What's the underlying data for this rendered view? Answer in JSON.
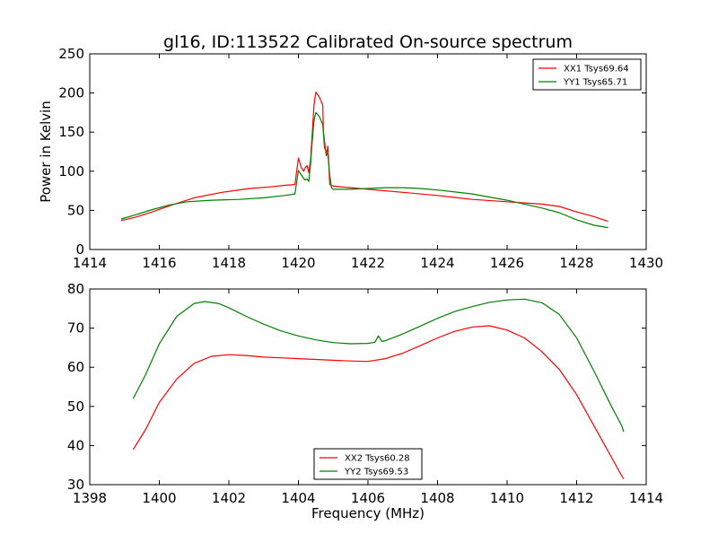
{
  "figure": {
    "title": "gl16, ID:113522 Calibrated On-source spectrum",
    "top_ylabel": "Power in Kelvin",
    "bottom_xlabel": "Frequency (MHz)"
  },
  "chart_data": [
    {
      "type": "line",
      "title": "gl16, ID:113522 Calibrated On-source spectrum",
      "xlabel": "",
      "ylabel": "Power in Kelvin",
      "xlim": [
        1414,
        1430
      ],
      "ylim": [
        0,
        250
      ],
      "xticks": [
        1414,
        1416,
        1418,
        1420,
        1422,
        1424,
        1426,
        1428,
        1430
      ],
      "yticks": [
        0,
        50,
        100,
        150,
        200,
        250
      ],
      "legend_position": "top-right",
      "grid": false,
      "series": [
        {
          "name": "XX1 Tsys69.64",
          "color": "#ff0000",
          "points": [
            [
              1414.9,
              37
            ],
            [
              1415.3,
              41
            ],
            [
              1415.8,
              48
            ],
            [
              1416.3,
              56
            ],
            [
              1417.0,
              66
            ],
            [
              1417.8,
              73
            ],
            [
              1418.6,
              78
            ],
            [
              1419.2,
              80
            ],
            [
              1419.6,
              82
            ],
            [
              1419.9,
              83
            ],
            [
              1420.0,
              117
            ],
            [
              1420.08,
              105
            ],
            [
              1420.15,
              100
            ],
            [
              1420.2,
              105
            ],
            [
              1420.25,
              107
            ],
            [
              1420.3,
              98
            ],
            [
              1420.35,
              115
            ],
            [
              1420.4,
              150
            ],
            [
              1420.45,
              185
            ],
            [
              1420.5,
              201
            ],
            [
              1420.6,
              195
            ],
            [
              1420.7,
              185
            ],
            [
              1420.72,
              150
            ],
            [
              1420.8,
              120
            ],
            [
              1420.85,
              132
            ],
            [
              1420.9,
              83
            ],
            [
              1421.0,
              81
            ],
            [
              1422.0,
              77
            ],
            [
              1423.0,
              73
            ],
            [
              1424.0,
              69
            ],
            [
              1425.0,
              64
            ],
            [
              1426.0,
              61
            ],
            [
              1427.0,
              58
            ],
            [
              1427.5,
              55
            ],
            [
              1428.0,
              48
            ],
            [
              1428.5,
              42
            ],
            [
              1428.9,
              36
            ]
          ]
        },
        {
          "name": "YY1 Tsys65.71",
          "color": "#008000",
          "points": [
            [
              1414.9,
              39
            ],
            [
              1415.3,
              44
            ],
            [
              1415.8,
              51
            ],
            [
              1416.3,
              57
            ],
            [
              1416.8,
              61
            ],
            [
              1417.5,
              63
            ],
            [
              1418.3,
              64
            ],
            [
              1419.0,
              66
            ],
            [
              1419.6,
              69
            ],
            [
              1419.9,
              71
            ],
            [
              1420.0,
              101
            ],
            [
              1420.1,
              94
            ],
            [
              1420.18,
              89
            ],
            [
              1420.25,
              90
            ],
            [
              1420.3,
              87
            ],
            [
              1420.35,
              110
            ],
            [
              1420.4,
              140
            ],
            [
              1420.45,
              165
            ],
            [
              1420.5,
              175
            ],
            [
              1420.6,
              170
            ],
            [
              1420.7,
              160
            ],
            [
              1420.75,
              130
            ],
            [
              1420.85,
              120
            ],
            [
              1420.9,
              95
            ],
            [
              1420.95,
              79
            ],
            [
              1421.0,
              77
            ],
            [
              1421.5,
              77
            ],
            [
              1422.0,
              78
            ],
            [
              1422.5,
              79
            ],
            [
              1423.0,
              79
            ],
            [
              1423.5,
              78
            ],
            [
              1424.0,
              76
            ],
            [
              1425.0,
              71
            ],
            [
              1426.0,
              63
            ],
            [
              1427.0,
              53
            ],
            [
              1427.5,
              47
            ],
            [
              1428.0,
              38
            ],
            [
              1428.5,
              31
            ],
            [
              1428.9,
              28
            ]
          ]
        }
      ]
    },
    {
      "type": "line",
      "title": "",
      "xlabel": "Frequency (MHz)",
      "ylabel": "",
      "xlim": [
        1398,
        1414
      ],
      "ylim": [
        30,
        80
      ],
      "xticks": [
        1398,
        1400,
        1402,
        1404,
        1406,
        1408,
        1410,
        1412,
        1414
      ],
      "yticks": [
        30,
        40,
        50,
        60,
        70,
        80
      ],
      "legend_position": "bottom-center",
      "grid": false,
      "series": [
        {
          "name": "XX2 Tsys60.28",
          "color": "#ff0000",
          "points": [
            [
              1399.25,
              39
            ],
            [
              1399.6,
              44
            ],
            [
              1400.0,
              51
            ],
            [
              1400.5,
              57
            ],
            [
              1401.0,
              61
            ],
            [
              1401.5,
              62.8
            ],
            [
              1402.0,
              63.2
            ],
            [
              1402.5,
              63
            ],
            [
              1403.0,
              62.6
            ],
            [
              1403.5,
              62.4
            ],
            [
              1404.0,
              62.2
            ],
            [
              1404.5,
              62
            ],
            [
              1405.0,
              61.8
            ],
            [
              1405.5,
              61.6
            ],
            [
              1406.0,
              61.5
            ],
            [
              1406.5,
              62.2
            ],
            [
              1407.0,
              63.6
            ],
            [
              1407.5,
              65.5
            ],
            [
              1408.0,
              67.5
            ],
            [
              1408.5,
              69.2
            ],
            [
              1409.0,
              70.3
            ],
            [
              1409.5,
              70.6
            ],
            [
              1410.0,
              69.5
            ],
            [
              1410.5,
              67.5
            ],
            [
              1411.0,
              64
            ],
            [
              1411.5,
              59.5
            ],
            [
              1412.0,
              53
            ],
            [
              1412.5,
              45
            ],
            [
              1413.0,
              37
            ],
            [
              1413.25,
              33
            ],
            [
              1413.35,
              31.5
            ]
          ]
        },
        {
          "name": "YY2 Tsys69.53",
          "color": "#008000",
          "points": [
            [
              1399.25,
              52
            ],
            [
              1399.6,
              58
            ],
            [
              1400.0,
              66
            ],
            [
              1400.5,
              73
            ],
            [
              1401.0,
              76.3
            ],
            [
              1401.3,
              76.8
            ],
            [
              1401.7,
              76.3
            ],
            [
              1402.0,
              75.2
            ],
            [
              1402.5,
              73
            ],
            [
              1403.0,
              71
            ],
            [
              1403.5,
              69.3
            ],
            [
              1404.0,
              68
            ],
            [
              1404.5,
              67
            ],
            [
              1405.0,
              66.3
            ],
            [
              1405.5,
              66
            ],
            [
              1406.0,
              66.1
            ],
            [
              1406.2,
              66.4
            ],
            [
              1406.3,
              68
            ],
            [
              1406.4,
              66.6
            ],
            [
              1406.5,
              66.8
            ],
            [
              1407.0,
              68.5
            ],
            [
              1407.5,
              70.5
            ],
            [
              1408.0,
              72.5
            ],
            [
              1408.5,
              74.3
            ],
            [
              1409.0,
              75.5
            ],
            [
              1409.5,
              76.6
            ],
            [
              1410.0,
              77.2
            ],
            [
              1410.5,
              77.4
            ],
            [
              1411.0,
              76.5
            ],
            [
              1411.5,
              73.5
            ],
            [
              1412.0,
              67.5
            ],
            [
              1412.5,
              59
            ],
            [
              1413.0,
              50
            ],
            [
              1413.3,
              45
            ],
            [
              1413.35,
              43.5
            ]
          ]
        }
      ]
    }
  ]
}
